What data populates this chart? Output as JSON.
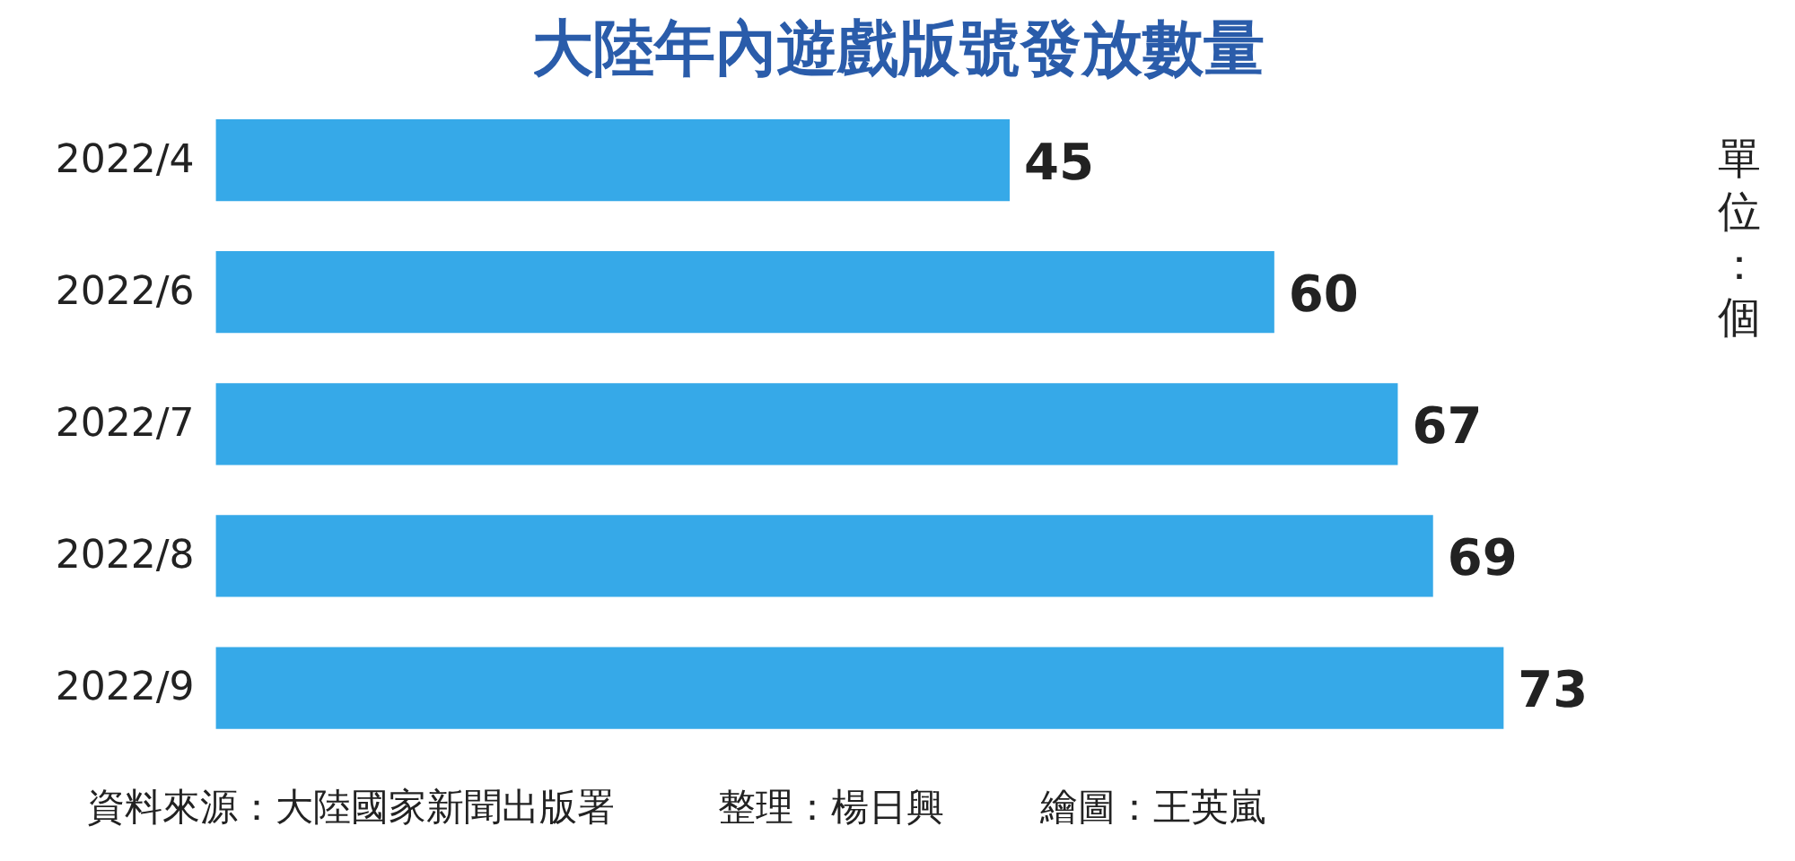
{
  "chart_data": {
    "type": "bar",
    "orientation": "horizontal",
    "title": "大陸年內遊戲版號發放數量",
    "categories": [
      "2022/4",
      "2022/6",
      "2022/7",
      "2022/8",
      "2022/9"
    ],
    "values": [
      45,
      60,
      67,
      69,
      73
    ],
    "color": "#36a9e8",
    "data_labels": true,
    "grid": false,
    "tick_labels": "y",
    "annotations": [
      "單位：個",
      "資料來源：大陸國家新聞出版署",
      "整理：楊日興",
      "繪圖：王英嵐"
    ]
  }
}
